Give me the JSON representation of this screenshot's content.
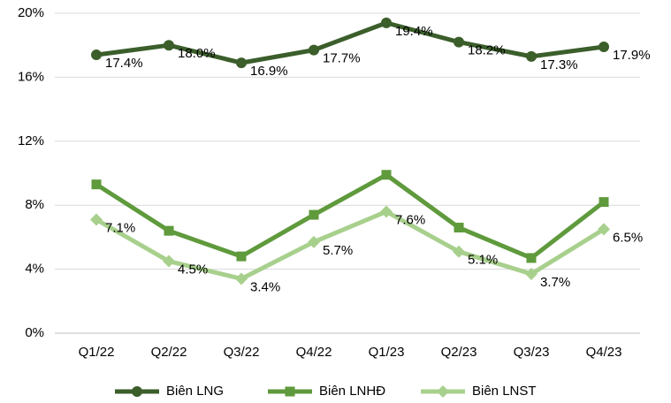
{
  "chart_data": {
    "type": "line",
    "categories": [
      "Q1/22",
      "Q2/22",
      "Q3/22",
      "Q4/22",
      "Q1/23",
      "Q2/23",
      "Q3/23",
      "Q4/23"
    ],
    "series": [
      {
        "name": "Biên LNG",
        "color": "#3b5e2b",
        "marker": "circle",
        "values": [
          17.4,
          18.0,
          16.9,
          17.7,
          19.4,
          18.2,
          17.3,
          17.9
        ],
        "value_labels": [
          "17.4%",
          "18.0%",
          "16.9%",
          "17.7%",
          "19.4%",
          "18.2%",
          "17.3%",
          "17.9%"
        ]
      },
      {
        "name": "Biên LNHĐ",
        "color": "#5f9a3c",
        "marker": "square",
        "values": [
          9.3,
          6.4,
          4.8,
          7.4,
          9.9,
          6.6,
          4.7,
          8.2
        ]
      },
      {
        "name": "Biên LNST",
        "color": "#a8d08d",
        "marker": "diamond",
        "values": [
          7.1,
          4.5,
          3.4,
          5.7,
          7.6,
          5.1,
          3.7,
          6.5
        ],
        "value_labels": [
          "7.1%",
          "4.5%",
          "3.4%",
          "5.7%",
          "7.6%",
          "5.1%",
          "3.7%",
          "6.5%"
        ]
      }
    ],
    "ylim": [
      0,
      20
    ],
    "yticks": [
      {
        "value": 0,
        "label": "0%"
      },
      {
        "value": 4,
        "label": "4%"
      },
      {
        "value": 8,
        "label": "8%"
      },
      {
        "value": 12,
        "label": "12%"
      },
      {
        "value": 16,
        "label": "16%"
      },
      {
        "value": 20,
        "label": "20%"
      }
    ],
    "grid": true,
    "legend": "bottom"
  }
}
